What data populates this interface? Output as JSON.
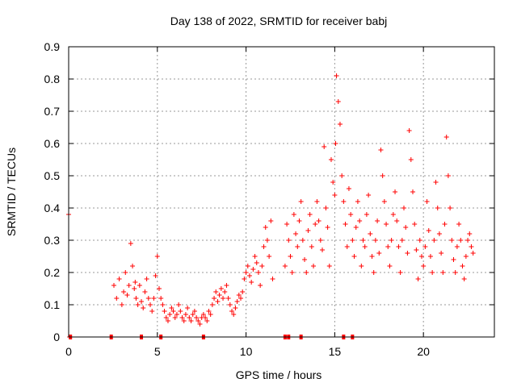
{
  "chart_data": {
    "type": "scatter",
    "title": "Day 138 of 2022, SRMTID for receiver babj",
    "xlabel": "GPS time / hours",
    "ylabel": "SRMTID / TECUs",
    "xlim": [
      0,
      24
    ],
    "ylim": [
      0,
      0.9
    ],
    "xticks": [
      0,
      5,
      10,
      15,
      20
    ],
    "yticks": [
      0,
      0.1,
      0.2,
      0.3,
      0.4,
      0.5,
      0.6,
      0.7,
      0.8,
      0.9
    ],
    "ytick_labels": [
      "0",
      "0.1",
      "0.2",
      "0.3",
      "0.4",
      "0.5",
      "0.6",
      "0.7",
      "0.8",
      "0.9"
    ],
    "grid": true,
    "marker": "+",
    "series": [
      {
        "name": "SRMTID",
        "color": "#ff0000",
        "x": [
          0.0,
          0.05,
          2.4,
          2.55,
          2.7,
          2.85,
          3.0,
          3.1,
          3.2,
          3.3,
          3.4,
          3.5,
          3.6,
          3.7,
          3.75,
          3.8,
          3.9,
          4.0,
          4.1,
          4.2,
          4.3,
          4.4,
          4.5,
          4.6,
          4.7,
          4.8,
          4.9,
          5.0,
          5.1,
          5.2,
          5.3,
          5.4,
          5.5,
          5.6,
          5.7,
          5.8,
          5.9,
          6.0,
          6.1,
          6.2,
          6.3,
          6.4,
          6.5,
          6.6,
          6.7,
          6.8,
          6.9,
          7.0,
          7.1,
          7.2,
          7.3,
          7.4,
          7.5,
          7.6,
          7.7,
          7.8,
          7.9,
          8.0,
          8.1,
          8.2,
          8.3,
          8.4,
          8.5,
          8.6,
          8.7,
          8.8,
          8.9,
          9.0,
          9.1,
          9.2,
          9.3,
          9.4,
          9.5,
          9.6,
          9.7,
          9.8,
          9.9,
          10.0,
          10.1,
          10.2,
          10.3,
          10.4,
          10.5,
          10.6,
          10.7,
          10.8,
          10.9,
          11.0,
          11.1,
          11.2,
          11.3,
          11.4,
          11.5,
          12.2,
          12.3,
          12.4,
          12.5,
          12.6,
          12.7,
          12.8,
          12.9,
          13.0,
          13.1,
          13.2,
          13.3,
          13.4,
          13.5,
          13.6,
          13.7,
          13.8,
          13.9,
          14.0,
          14.1,
          14.2,
          14.3,
          14.4,
          14.5,
          14.6,
          14.7,
          14.8,
          14.9,
          15.0,
          15.05,
          15.1,
          15.2,
          15.3,
          15.4,
          15.5,
          15.6,
          15.7,
          15.8,
          15.9,
          16.0,
          16.1,
          16.2,
          16.3,
          16.4,
          16.5,
          16.6,
          16.7,
          16.8,
          16.9,
          17.0,
          17.1,
          17.2,
          17.3,
          17.4,
          17.5,
          17.6,
          17.7,
          17.8,
          17.9,
          18.0,
          18.1,
          18.2,
          18.3,
          18.4,
          18.5,
          18.6,
          18.7,
          18.8,
          18.9,
          19.0,
          19.1,
          19.2,
          19.3,
          19.4,
          19.5,
          19.6,
          19.7,
          19.8,
          19.9,
          20.0,
          20.1,
          20.2,
          20.3,
          20.4,
          20.5,
          20.6,
          20.7,
          20.8,
          20.9,
          21.0,
          21.1,
          21.2,
          21.3,
          21.4,
          21.5,
          21.6,
          21.7,
          21.8,
          21.9,
          22.0,
          22.1,
          22.2,
          22.3,
          22.4,
          22.5,
          22.6,
          22.7,
          22.8,
          12.2,
          13.1,
          15.5,
          16.0,
          7.6,
          5.2
        ],
        "y": [
          0.38,
          0.0,
          0.0,
          0.16,
          0.12,
          0.18,
          0.1,
          0.14,
          0.2,
          0.13,
          0.16,
          0.29,
          0.22,
          0.15,
          0.17,
          0.12,
          0.1,
          0.16,
          0.11,
          0.09,
          0.14,
          0.18,
          0.12,
          0.1,
          0.08,
          0.12,
          0.19,
          0.25,
          0.15,
          0.12,
          0.1,
          0.08,
          0.06,
          0.05,
          0.07,
          0.09,
          0.08,
          0.06,
          0.07,
          0.1,
          0.08,
          0.06,
          0.05,
          0.07,
          0.09,
          0.06,
          0.05,
          0.07,
          0.08,
          0.06,
          0.05,
          0.04,
          0.06,
          0.07,
          0.06,
          0.05,
          0.08,
          0.07,
          0.1,
          0.12,
          0.14,
          0.11,
          0.13,
          0.15,
          0.12,
          0.14,
          0.16,
          0.12,
          0.1,
          0.08,
          0.07,
          0.09,
          0.11,
          0.13,
          0.12,
          0.14,
          0.18,
          0.2,
          0.22,
          0.19,
          0.17,
          0.21,
          0.25,
          0.23,
          0.2,
          0.16,
          0.22,
          0.28,
          0.34,
          0.3,
          0.25,
          0.36,
          0.18,
          0.22,
          0.35,
          0.3,
          0.25,
          0.2,
          0.38,
          0.32,
          0.28,
          0.36,
          0.42,
          0.3,
          0.24,
          0.2,
          0.33,
          0.38,
          0.28,
          0.22,
          0.35,
          0.42,
          0.36,
          0.3,
          0.27,
          0.59,
          0.4,
          0.34,
          0.22,
          0.55,
          0.48,
          0.44,
          0.6,
          0.81,
          0.73,
          0.66,
          0.5,
          0.42,
          0.35,
          0.28,
          0.46,
          0.38,
          0.3,
          0.25,
          0.34,
          0.42,
          0.36,
          0.22,
          0.3,
          0.28,
          0.38,
          0.44,
          0.32,
          0.25,
          0.2,
          0.3,
          0.36,
          0.26,
          0.58,
          0.5,
          0.42,
          0.35,
          0.28,
          0.22,
          0.3,
          0.38,
          0.45,
          0.36,
          0.28,
          0.2,
          0.3,
          0.4,
          0.34,
          0.26,
          0.64,
          0.55,
          0.45,
          0.35,
          0.27,
          0.18,
          0.3,
          0.25,
          0.22,
          0.28,
          0.42,
          0.33,
          0.25,
          0.2,
          0.3,
          0.48,
          0.4,
          0.32,
          0.26,
          0.2,
          0.35,
          0.62,
          0.5,
          0.4,
          0.3,
          0.24,
          0.2,
          0.28,
          0.35,
          0.3,
          0.22,
          0.18,
          0.25,
          0.3,
          0.32,
          0.28,
          0.26,
          0.0,
          0.0,
          0.0,
          0.0,
          0.0,
          0.0
        ]
      }
    ],
    "zero_markers_x": [
      0.1,
      2.4,
      4.1,
      5.2,
      7.6,
      12.2,
      12.4,
      13.1,
      15.5,
      16.0
    ]
  }
}
